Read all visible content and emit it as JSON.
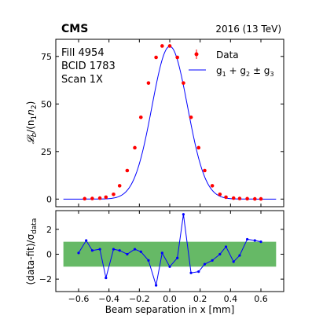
{
  "chart_data": [
    {
      "type": "scatter",
      "experiment": "CMS",
      "run_info": "2016 (13 TeV)",
      "info_lines": [
        "Fill 4954",
        "BCID 1783",
        "Scan 1X"
      ],
      "xlim": [
        -0.75,
        0.75
      ],
      "ylim": [
        -4,
        84
      ],
      "yticks": [
        0,
        25,
        50,
        75
      ],
      "xlabel": "Beam separation in x [mm]",
      "ylabel": "𝓛b/(n1n2)",
      "ylabel_main": "𝓛",
      "ylabel_sub": "b",
      "ylabel_rest": "/(n",
      "ylabel_sub2": "1",
      "ylabel_mid": "n",
      "ylabel_sub3": "2",
      "ylabel_end": ")",
      "grid": false,
      "legend_position": "top-right",
      "legend": {
        "data_label": "Data",
        "fit_label": "g1 + g2 ± g3",
        "fit_label_parts": [
          "g",
          "1",
          " + g",
          "2",
          " ± g",
          "3"
        ]
      },
      "colors": {
        "data": "#ff0000",
        "fit": "#0000ff"
      },
      "fit_range": [
        -0.7,
        0.7
      ],
      "fit_peak": 80.3,
      "fit_sigma": 0.117,
      "series": [
        {
          "name": "Data",
          "x": [
            -0.56,
            -0.51,
            -0.46,
            -0.42,
            -0.37,
            -0.33,
            -0.28,
            -0.23,
            -0.19,
            -0.14,
            -0.09,
            -0.05,
            0.0,
            0.05,
            0.09,
            0.14,
            0.19,
            0.23,
            0.28,
            0.33,
            0.37,
            0.42,
            0.46,
            0.51,
            0.56,
            0.6
          ],
          "y": [
            0.2,
            0.3,
            0.5,
            1.0,
            2.5,
            7.0,
            15.0,
            27.0,
            43.0,
            61.0,
            74.5,
            80.5,
            80.5,
            74.5,
            61.0,
            43.0,
            27.0,
            15.0,
            7.0,
            2.5,
            1.0,
            0.5,
            0.3,
            0.2,
            0.1,
            0.1
          ]
        }
      ]
    },
    {
      "type": "line",
      "xlim": [
        -0.75,
        0.75
      ],
      "ylim": [
        -3,
        3.5
      ],
      "yticks": [
        -2,
        0,
        2
      ],
      "xticks": [
        -0.6,
        -0.4,
        -0.2,
        0.0,
        0.2,
        0.4,
        0.6
      ],
      "xtick_labels": [
        "−0.6",
        "−0.4",
        "−0.2",
        "0.0",
        "0.2",
        "0.4",
        "0.6"
      ],
      "ylabel": "(data-fit)/σdata",
      "ylabel_main": "(data-fit)/σ",
      "ylabel_sub": "data",
      "band": [
        -1,
        1
      ],
      "band_x": [
        -0.7,
        0.7
      ],
      "colors": {
        "band": "#66b966",
        "line": "#0000ff"
      },
      "series": [
        {
          "name": "Residuals",
          "x": [
            -0.6,
            -0.55,
            -0.51,
            -0.46,
            -0.42,
            -0.37,
            -0.33,
            -0.28,
            -0.23,
            -0.19,
            -0.14,
            -0.09,
            -0.05,
            0.0,
            0.05,
            0.09,
            0.14,
            0.19,
            0.23,
            0.28,
            0.33,
            0.37,
            0.42,
            0.46,
            0.51,
            0.56,
            0.6
          ],
          "y": [
            0.1,
            1.1,
            0.3,
            0.4,
            -1.9,
            0.4,
            0.3,
            0.0,
            0.4,
            0.2,
            -0.5,
            -2.5,
            0.1,
            -1.0,
            -0.3,
            3.2,
            -1.5,
            -1.4,
            -0.8,
            -0.5,
            0.0,
            0.6,
            -0.6,
            -0.1,
            1.2,
            1.1,
            1.0
          ]
        }
      ]
    }
  ]
}
